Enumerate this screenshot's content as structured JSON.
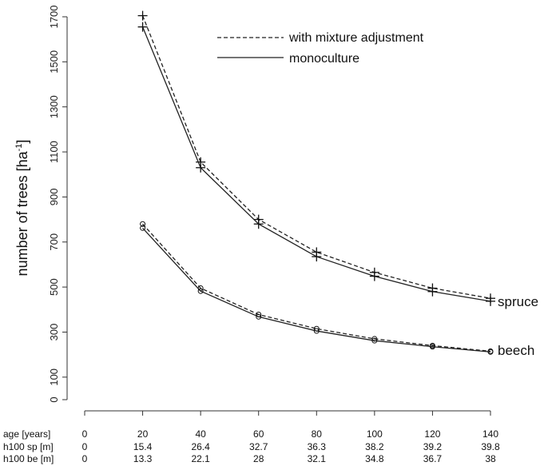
{
  "chart_data": {
    "type": "line",
    "title": "",
    "ylabel": "number of trees [ha",
    "ylabel_sup": "-1",
    "ylabel_tail": "]",
    "ylim": [
      0,
      1700
    ],
    "yticks": [
      0,
      100,
      300,
      500,
      700,
      900,
      1100,
      1300,
      1500,
      1700
    ],
    "x": [
      20,
      40,
      60,
      80,
      100,
      120,
      140
    ],
    "xlim": [
      0,
      140
    ],
    "legend": {
      "position": "top-right",
      "entries": [
        {
          "label": "with mixture adjustment",
          "style": "dashed"
        },
        {
          "label": "monoculture",
          "style": "solid"
        }
      ]
    },
    "series": [
      {
        "species": "spruce",
        "name": "with mixture adjustment",
        "marker": "+",
        "style": "dashed",
        "values": [
          1705,
          1055,
          800,
          655,
          565,
          495,
          450
        ]
      },
      {
        "species": "spruce",
        "name": "monoculture",
        "marker": "+",
        "style": "solid",
        "values": [
          1655,
          1030,
          780,
          635,
          548,
          480,
          437
        ]
      },
      {
        "species": "beech",
        "name": "with mixture adjustment",
        "marker": "o",
        "style": "dashed",
        "values": [
          780,
          495,
          378,
          315,
          270,
          240,
          215
        ]
      },
      {
        "species": "beech",
        "name": "monoculture",
        "marker": "o",
        "style": "solid",
        "values": [
          762,
          482,
          368,
          305,
          262,
          235,
          212
        ]
      }
    ],
    "series_labels": [
      "spruce",
      "beech"
    ],
    "x_table": {
      "rows": [
        {
          "label": "age [years]",
          "values": [
            "0",
            "20",
            "40",
            "60",
            "80",
            "100",
            "120",
            "140"
          ]
        },
        {
          "label": "h100 sp [m]",
          "values": [
            "0",
            "15.4",
            "26.4",
            "32.7",
            "36.3",
            "38.2",
            "39.2",
            "39.8"
          ]
        },
        {
          "label": "h100 be [m]",
          "values": [
            "0",
            "13.3",
            "22.1",
            "28",
            "32.1",
            "34.8",
            "36.7",
            "38"
          ]
        }
      ]
    }
  }
}
